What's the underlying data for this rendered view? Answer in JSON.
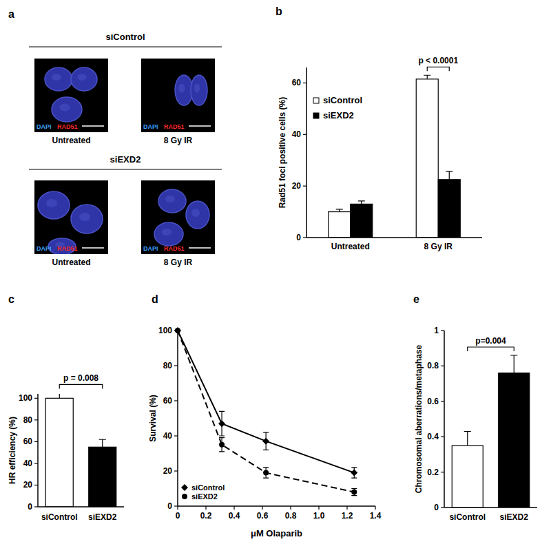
{
  "image_panel": {
    "label": "a",
    "groups": [
      {
        "title": "siControl",
        "images": [
          {
            "caption": "Untreated",
            "stains": [
              {
                "text": "DAPI",
                "color": "#3ba3ff"
              },
              {
                "text": "RAD51",
                "color": "#ff2a2a"
              }
            ]
          },
          {
            "caption": "8 Gy IR",
            "stains": [
              {
                "text": "DAPI",
                "color": "#3ba3ff"
              },
              {
                "text": "RAD51",
                "color": "#ff2a2a"
              }
            ]
          }
        ]
      },
      {
        "title": "siEXD2",
        "images": [
          {
            "caption": "Untreated",
            "stains": [
              {
                "text": "DAPI",
                "color": "#3ba3ff"
              },
              {
                "text": "RAD51",
                "color": "#ff2a2a"
              }
            ]
          },
          {
            "caption": "8 Gy IR",
            "stains": [
              {
                "text": "DAPI",
                "color": "#3ba3ff"
              },
              {
                "text": "RAD51",
                "color": "#ff2a2a"
              }
            ]
          }
        ]
      }
    ]
  },
  "chart_data": [
    {
      "label": "b",
      "type": "bar",
      "y_label": "Rad51 foci positive cells (%)",
      "categories": [
        "Untreated",
        "8 Gy IR"
      ],
      "series": [
        {
          "name": "siControl",
          "color": "#ffffff",
          "values": [
            10,
            61.5
          ],
          "errors": [
            1,
            1.5
          ]
        },
        {
          "name": "siEXD2",
          "color": "#000000",
          "values": [
            13,
            22.5
          ],
          "errors": [
            1.2,
            3.2
          ]
        }
      ],
      "ylim": [
        0,
        66
      ],
      "yticks": [
        0,
        20,
        40,
        60
      ],
      "legend": "upper left",
      "grid": false,
      "annotation": "p < 0.0001"
    },
    {
      "label": "c",
      "type": "bar",
      "y_label": "HR efficiency (%)",
      "categories": [
        "siControl",
        "siEXD2"
      ],
      "series": [
        {
          "values": [
            100,
            55
          ],
          "errors": [
            5,
            7
          ]
        }
      ],
      "colors": [
        "#ffffff",
        "#000000"
      ],
      "ylim": [
        0,
        104
      ],
      "yticks": [
        0,
        20,
        40,
        60,
        80,
        100
      ],
      "grid": false,
      "annotation": "p = 0.008"
    },
    {
      "label": "d",
      "type": "line",
      "x_label": "μM Olaparib",
      "y_label": "Survival (%)",
      "x": [
        0,
        0.3125,
        0.625,
        1.25
      ],
      "series": [
        {
          "name": "siControl",
          "color": "#000000",
          "line_style": "solid",
          "marker": "diamond",
          "values": [
            100,
            47,
            37,
            19
          ],
          "errors": [
            0,
            7,
            5,
            3
          ]
        },
        {
          "name": "siEXD2",
          "color": "#000000",
          "line_style": "dashed",
          "marker": "circle",
          "values": [
            100,
            35,
            19,
            8
          ],
          "errors": [
            0,
            4,
            3,
            2
          ]
        }
      ],
      "xlim": [
        0,
        1.4
      ],
      "xticks": [
        0,
        0.2,
        0.4,
        0.6,
        0.8,
        {
          "value": 1,
          "label": "1.0"
        },
        1.2,
        1.4
      ],
      "ylim": [
        0,
        100
      ],
      "yticks": [
        0,
        20,
        40,
        60,
        80,
        100
      ],
      "legend": "lower left",
      "grid": false
    },
    {
      "label": "e",
      "type": "bar",
      "y_label": "Chromosomal aberrations/metaphase",
      "categories": [
        "siControl",
        "siEXD2"
      ],
      "series": [
        {
          "values": [
            0.35,
            0.76
          ],
          "errors": [
            0.08,
            0.1
          ]
        }
      ],
      "colors": [
        "#ffffff",
        "#000000"
      ],
      "ylim": [
        0,
        1
      ],
      "yticks": [
        0,
        0.2,
        0.4,
        0.6,
        0.8,
        1
      ],
      "grid": false,
      "annotation": "p=0.004"
    }
  ]
}
